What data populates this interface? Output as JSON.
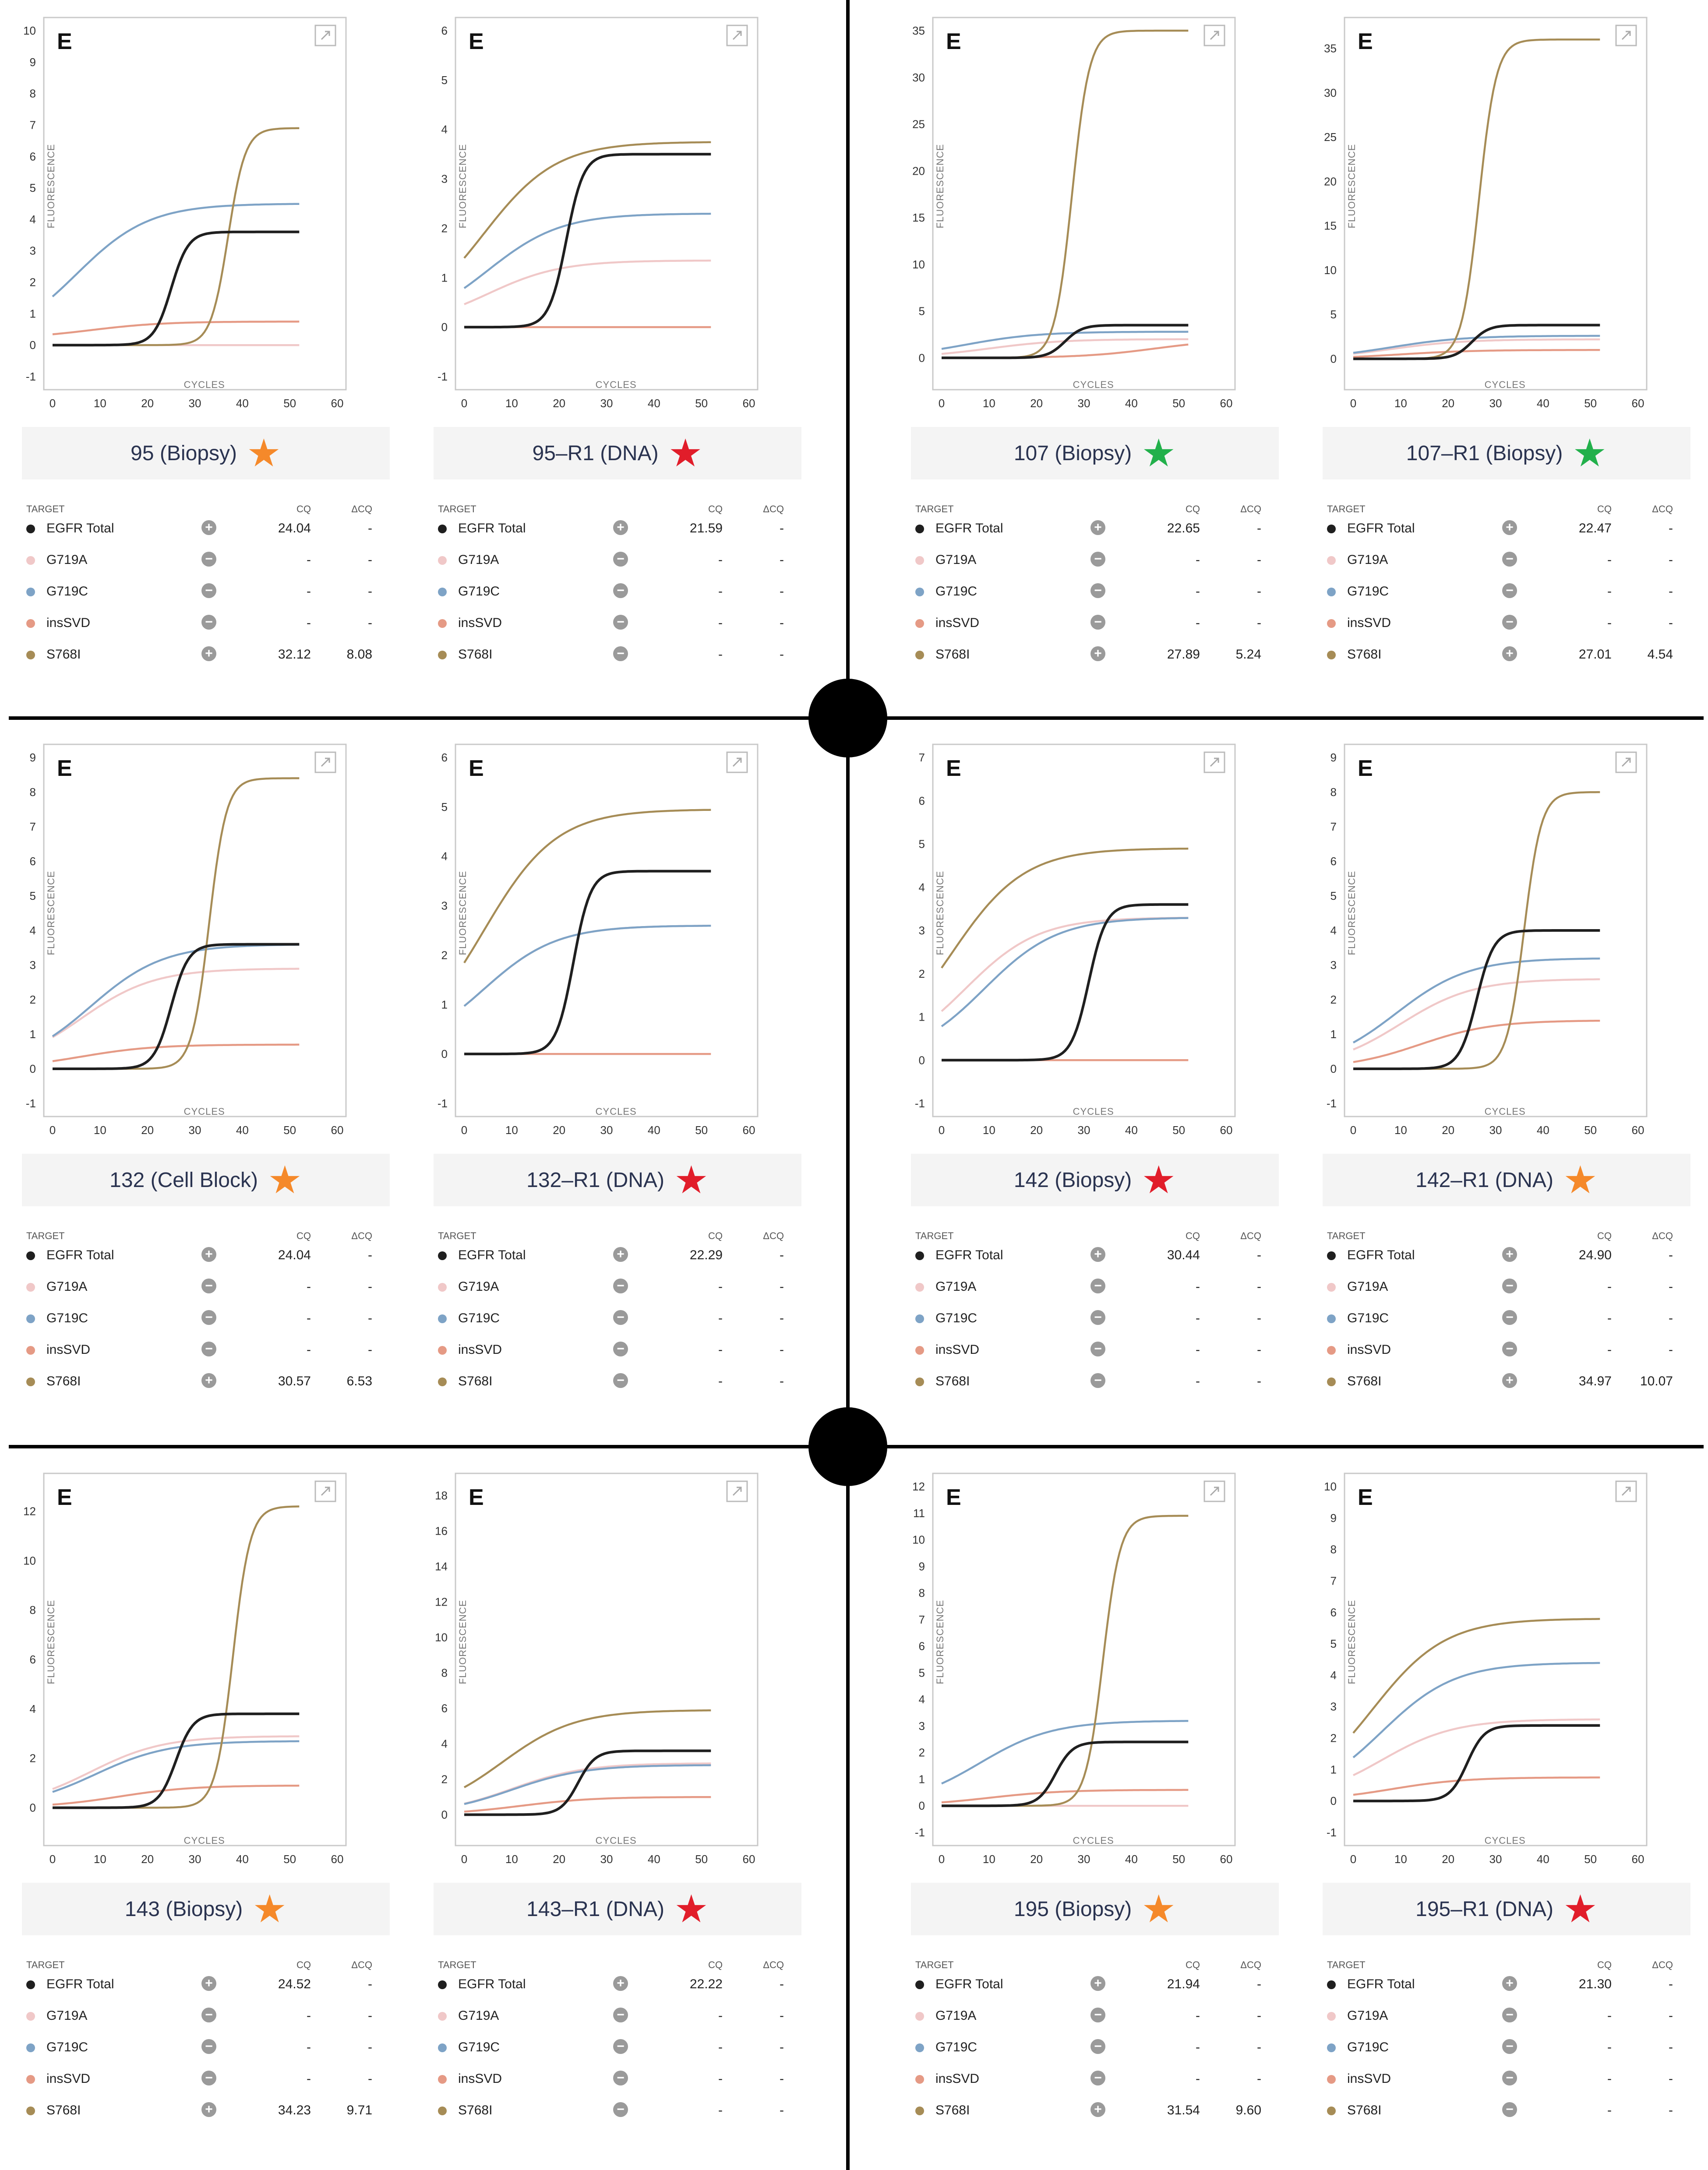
{
  "colors": {
    "egfr_total": "#1f1f1f",
    "g719a": "#f0c8c8",
    "g719c": "#7ea3c6",
    "inssvd": "#e59a85",
    "s768i": "#a68c56",
    "star_orange": "#f5892a",
    "star_red": "#e11d2a",
    "star_green": "#22b04b"
  },
  "common": {
    "panel_letter": "E",
    "xlabel": "CYCLES",
    "ylabel": "FLUORESCENCE",
    "table_headers": {
      "target": "TARGET",
      "cq": "CQ",
      "dcq": "ΔCQ"
    },
    "x_ticks": [
      "0",
      "10",
      "20",
      "30",
      "40",
      "50",
      "60"
    ]
  },
  "chart_data": [
    {
      "type": "line",
      "sample": "95 (Biopsy)",
      "star": "orange",
      "ylim": [
        -1,
        10
      ],
      "y_ticks": [
        "-1",
        "0",
        "1",
        "2",
        "3",
        "4",
        "5",
        "6",
        "7",
        "8",
        "9",
        "10"
      ],
      "series": [
        {
          "name": "EGFR Total",
          "plateau": 3.6,
          "midpoint": 25,
          "base": 0
        },
        {
          "name": "G719A",
          "plateau": 0,
          "midpoint": 20,
          "base": 0
        },
        {
          "name": "G719C",
          "plateau": 4.5,
          "midpoint": 5,
          "base": 0
        },
        {
          "name": "insSVD",
          "plateau": 0.75,
          "midpoint": 8,
          "base": 0.2
        },
        {
          "name": "S768I",
          "plateau": 6.9,
          "midpoint": 37,
          "base": 0
        }
      ],
      "table": [
        {
          "target": "EGFR Total",
          "call": "+",
          "cq": "24.04",
          "dcq": "-"
        },
        {
          "target": "G719A",
          "call": "−",
          "cq": "-",
          "dcq": "-"
        },
        {
          "target": "G719C",
          "call": "−",
          "cq": "-",
          "dcq": "-"
        },
        {
          "target": "insSVD",
          "call": "−",
          "cq": "-",
          "dcq": "-"
        },
        {
          "target": "S768I",
          "call": "+",
          "cq": "32.12",
          "dcq": "8.08"
        }
      ]
    },
    {
      "type": "line",
      "sample": "95–R1 (DNA)",
      "star": "red",
      "ylim": [
        -1,
        6
      ],
      "y_ticks": [
        "-1",
        "0",
        "1",
        "2",
        "3",
        "4",
        "5",
        "6"
      ],
      "series": [
        {
          "name": "EGFR Total",
          "plateau": 3.5,
          "midpoint": 21.5,
          "base": 0
        },
        {
          "name": "G719A",
          "plateau": 1.35,
          "midpoint": 5,
          "base": 0
        },
        {
          "name": "G719C",
          "plateau": 2.3,
          "midpoint": 5,
          "base": 0
        },
        {
          "name": "insSVD",
          "plateau": 0,
          "midpoint": 20,
          "base": 0
        },
        {
          "name": "S768I",
          "plateau": 3.75,
          "midpoint": 4,
          "base": 0
        }
      ],
      "table": [
        {
          "target": "EGFR Total",
          "call": "+",
          "cq": "21.59",
          "dcq": "-"
        },
        {
          "target": "G719A",
          "call": "−",
          "cq": "-",
          "dcq": "-"
        },
        {
          "target": "G719C",
          "call": "−",
          "cq": "-",
          "dcq": "-"
        },
        {
          "target": "insSVD",
          "call": "−",
          "cq": "-",
          "dcq": "-"
        },
        {
          "target": "S768I",
          "call": "−",
          "cq": "-",
          "dcq": "-"
        }
      ]
    },
    {
      "type": "line",
      "sample": "107 (Biopsy)",
      "star": "green",
      "ylim": [
        -2,
        35
      ],
      "y_ticks": [
        "0",
        "5",
        "10",
        "15",
        "20",
        "25",
        "30",
        "35"
      ],
      "series": [
        {
          "name": "EGFR Total",
          "plateau": 3.5,
          "midpoint": 26,
          "base": 0
        },
        {
          "name": "G719A",
          "plateau": 2.0,
          "midpoint": 10,
          "base": 0
        },
        {
          "name": "G719C",
          "plateau": 2.8,
          "midpoint": 5,
          "base": 0
        },
        {
          "name": "insSVD",
          "plateau": 2.0,
          "midpoint": 45,
          "base": 0
        },
        {
          "name": "S768I",
          "plateau": 35,
          "midpoint": 27.5,
          "base": 0
        }
      ],
      "table": [
        {
          "target": "EGFR Total",
          "call": "+",
          "cq": "22.65",
          "dcq": "-"
        },
        {
          "target": "G719A",
          "call": "−",
          "cq": "-",
          "dcq": "-"
        },
        {
          "target": "G719C",
          "call": "−",
          "cq": "-",
          "dcq": "-"
        },
        {
          "target": "insSVD",
          "call": "−",
          "cq": "-",
          "dcq": "-"
        },
        {
          "target": "S768I",
          "call": "+",
          "cq": "27.89",
          "dcq": "5.24"
        }
      ]
    },
    {
      "type": "line",
      "sample": "107–R1 (Biopsy)",
      "star": "green",
      "ylim": [
        -2,
        37
      ],
      "y_ticks": [
        "0",
        "5",
        "10",
        "15",
        "20",
        "25",
        "30",
        "35"
      ],
      "series": [
        {
          "name": "EGFR Total",
          "plateau": 3.8,
          "midpoint": 25,
          "base": 0
        },
        {
          "name": "G719A",
          "plateau": 2.2,
          "midpoint": 8,
          "base": 0
        },
        {
          "name": "G719C",
          "plateau": 2.6,
          "midpoint": 8,
          "base": 0
        },
        {
          "name": "insSVD",
          "plateau": 1.0,
          "midpoint": 10,
          "base": 0
        },
        {
          "name": "S768I",
          "plateau": 36,
          "midpoint": 26.5,
          "base": 0
        }
      ],
      "table": [
        {
          "target": "EGFR Total",
          "call": "+",
          "cq": "22.47",
          "dcq": "-"
        },
        {
          "target": "G719A",
          "call": "−",
          "cq": "-",
          "dcq": "-"
        },
        {
          "target": "G719C",
          "call": "−",
          "cq": "-",
          "dcq": "-"
        },
        {
          "target": "insSVD",
          "call": "−",
          "cq": "-",
          "dcq": "-"
        },
        {
          "target": "S768I",
          "call": "+",
          "cq": "27.01",
          "dcq": "4.54"
        }
      ]
    },
    {
      "type": "line",
      "sample": "132 (Cell Block)",
      "star": "orange",
      "ylim": [
        -1,
        9
      ],
      "y_ticks": [
        "-1",
        "0",
        "1",
        "2",
        "3",
        "4",
        "5",
        "6",
        "7",
        "8",
        "9"
      ],
      "series": [
        {
          "name": "EGFR Total",
          "plateau": 3.6,
          "midpoint": 25,
          "base": 0
        },
        {
          "name": "G719A",
          "plateau": 2.9,
          "midpoint": 6,
          "base": 0
        },
        {
          "name": "G719C",
          "plateau": 3.6,
          "midpoint": 8,
          "base": 0
        },
        {
          "name": "insSVD",
          "plateau": 0.7,
          "midpoint": 6,
          "base": 0
        },
        {
          "name": "S768I",
          "plateau": 8.4,
          "midpoint": 33,
          "base": 0
        }
      ],
      "table": [
        {
          "target": "EGFR Total",
          "call": "+",
          "cq": "24.04",
          "dcq": "-"
        },
        {
          "target": "G719A",
          "call": "−",
          "cq": "-",
          "dcq": "-"
        },
        {
          "target": "G719C",
          "call": "−",
          "cq": "-",
          "dcq": "-"
        },
        {
          "target": "insSVD",
          "call": "−",
          "cq": "-",
          "dcq": "-"
        },
        {
          "target": "S768I",
          "call": "+",
          "cq": "30.57",
          "dcq": "6.53"
        }
      ]
    },
    {
      "type": "line",
      "sample": "132–R1 (DNA)",
      "star": "red",
      "ylim": [
        -1,
        6
      ],
      "y_ticks": [
        "-1",
        "0",
        "1",
        "2",
        "3",
        "4",
        "5",
        "6"
      ],
      "series": [
        {
          "name": "EGFR Total",
          "plateau": 3.7,
          "midpoint": 23,
          "base": 0
        },
        {
          "name": "G719A",
          "plateau": 2.6,
          "midpoint": 4,
          "base": 0
        },
        {
          "name": "G719C",
          "plateau": 2.6,
          "midpoint": 4,
          "base": 0
        },
        {
          "name": "insSVD",
          "plateau": 0,
          "midpoint": 20,
          "base": 0
        },
        {
          "name": "S768I",
          "plateau": 4.95,
          "midpoint": 4,
          "base": 0
        }
      ],
      "table": [
        {
          "target": "EGFR Total",
          "call": "+",
          "cq": "22.29",
          "dcq": "-"
        },
        {
          "target": "G719A",
          "call": "−",
          "cq": "-",
          "dcq": "-"
        },
        {
          "target": "G719C",
          "call": "−",
          "cq": "-",
          "dcq": "-"
        },
        {
          "target": "insSVD",
          "call": "−",
          "cq": "-",
          "dcq": "-"
        },
        {
          "target": "S768I",
          "call": "−",
          "cq": "-",
          "dcq": "-"
        }
      ]
    },
    {
      "type": "line",
      "sample": "142 (Biopsy)",
      "star": "red",
      "ylim": [
        -1,
        7
      ],
      "y_ticks": [
        "-1",
        "0",
        "1",
        "2",
        "3",
        "4",
        "5",
        "6",
        "7"
      ],
      "series": [
        {
          "name": "EGFR Total",
          "plateau": 3.6,
          "midpoint": 31,
          "base": 0
        },
        {
          "name": "G719A",
          "plateau": 3.3,
          "midpoint": 5,
          "base": 0
        },
        {
          "name": "G719C",
          "plateau": 3.3,
          "midpoint": 9,
          "base": 0
        },
        {
          "name": "insSVD",
          "plateau": 0,
          "midpoint": 20,
          "base": 0
        },
        {
          "name": "S768I",
          "plateau": 4.9,
          "midpoint": 2,
          "base": 0
        }
      ],
      "table": [
        {
          "target": "EGFR Total",
          "call": "+",
          "cq": "30.44",
          "dcq": "-"
        },
        {
          "target": "G719A",
          "call": "−",
          "cq": "-",
          "dcq": "-"
        },
        {
          "target": "G719C",
          "call": "−",
          "cq": "-",
          "dcq": "-"
        },
        {
          "target": "insSVD",
          "call": "−",
          "cq": "-",
          "dcq": "-"
        },
        {
          "target": "S768I",
          "call": "−",
          "cq": "-",
          "dcq": "-"
        }
      ]
    },
    {
      "type": "line",
      "sample": "142–R1 (DNA)",
      "star": "orange",
      "ylim": [
        -1,
        9
      ],
      "y_ticks": [
        "-1",
        "0",
        "1",
        "2",
        "3",
        "4",
        "5",
        "6",
        "7",
        "8",
        "9"
      ],
      "series": [
        {
          "name": "EGFR Total",
          "plateau": 4.0,
          "midpoint": 26,
          "base": 0
        },
        {
          "name": "G719A",
          "plateau": 2.6,
          "midpoint": 10,
          "base": 0
        },
        {
          "name": "G719C",
          "plateau": 3.2,
          "midpoint": 9,
          "base": 0
        },
        {
          "name": "insSVD",
          "plateau": 1.4,
          "midpoint": 14,
          "base": 0
        },
        {
          "name": "S768I",
          "plateau": 8.0,
          "midpoint": 36,
          "base": 0
        }
      ],
      "table": [
        {
          "target": "EGFR Total",
          "call": "+",
          "cq": "24.90",
          "dcq": "-"
        },
        {
          "target": "G719A",
          "call": "−",
          "cq": "-",
          "dcq": "-"
        },
        {
          "target": "G719C",
          "call": "−",
          "cq": "-",
          "dcq": "-"
        },
        {
          "target": "insSVD",
          "call": "−",
          "cq": "-",
          "dcq": "-"
        },
        {
          "target": "S768I",
          "call": "+",
          "cq": "34.97",
          "dcq": "10.07"
        }
      ]
    },
    {
      "type": "line",
      "sample": "143 (Biopsy)",
      "star": "orange",
      "ylim": [
        -1,
        13
      ],
      "y_ticks": [
        "0",
        "2",
        "4",
        "6",
        "8",
        "10",
        "12"
      ],
      "series": [
        {
          "name": "EGFR Total",
          "plateau": 3.8,
          "midpoint": 26,
          "base": 0
        },
        {
          "name": "G719A",
          "plateau": 2.9,
          "midpoint": 8,
          "base": 0
        },
        {
          "name": "G719C",
          "plateau": 2.7,
          "midpoint": 9,
          "base": 0
        },
        {
          "name": "insSVD",
          "plateau": 0.9,
          "midpoint": 14,
          "base": 0
        },
        {
          "name": "S768I",
          "plateau": 12.2,
          "midpoint": 38,
          "base": 0
        }
      ],
      "table": [
        {
          "target": "EGFR Total",
          "call": "+",
          "cq": "24.52",
          "dcq": "-"
        },
        {
          "target": "G719A",
          "call": "−",
          "cq": "-",
          "dcq": "-"
        },
        {
          "target": "G719C",
          "call": "−",
          "cq": "-",
          "dcq": "-"
        },
        {
          "target": "insSVD",
          "call": "−",
          "cq": "-",
          "dcq": "-"
        },
        {
          "target": "S768I",
          "call": "+",
          "cq": "34.23",
          "dcq": "9.71"
        }
      ]
    },
    {
      "type": "line",
      "sample": "143–R1 (DNA)",
      "star": "red",
      "ylim": [
        -1,
        18.5
      ],
      "y_ticks": [
        "0",
        "2",
        "4",
        "6",
        "8",
        "10",
        "12",
        "14",
        "16",
        "18"
      ],
      "series": [
        {
          "name": "EGFR Total",
          "plateau": 3.6,
          "midpoint": 24,
          "base": 0
        },
        {
          "name": "G719A",
          "plateau": 2.9,
          "midpoint": 10,
          "base": 0
        },
        {
          "name": "G719C",
          "plateau": 2.8,
          "midpoint": 10,
          "base": 0
        },
        {
          "name": "insSVD",
          "plateau": 1.0,
          "midpoint": 12,
          "base": 0
        },
        {
          "name": "S768I",
          "plateau": 5.9,
          "midpoint": 8,
          "base": 0
        }
      ],
      "table": [
        {
          "target": "EGFR Total",
          "call": "+",
          "cq": "22.22",
          "dcq": "-"
        },
        {
          "target": "G719A",
          "call": "−",
          "cq": "-",
          "dcq": "-"
        },
        {
          "target": "G719C",
          "call": "−",
          "cq": "-",
          "dcq": "-"
        },
        {
          "target": "insSVD",
          "call": "−",
          "cq": "-",
          "dcq": "-"
        },
        {
          "target": "S768I",
          "call": "−",
          "cq": "-",
          "dcq": "-"
        }
      ]
    },
    {
      "type": "line",
      "sample": "195 (Biopsy)",
      "star": "orange",
      "ylim": [
        -1,
        12
      ],
      "y_ticks": [
        "-1",
        "0",
        "1",
        "2",
        "3",
        "4",
        "5",
        "6",
        "7",
        "8",
        "9",
        "10",
        "11",
        "12"
      ],
      "series": [
        {
          "name": "EGFR Total",
          "plateau": 2.4,
          "midpoint": 24,
          "base": 0
        },
        {
          "name": "G719A",
          "plateau": 0,
          "midpoint": 20,
          "base": 0
        },
        {
          "name": "G719C",
          "plateau": 3.2,
          "midpoint": 8,
          "base": 0
        },
        {
          "name": "insSVD",
          "plateau": 0.6,
          "midpoint": 10,
          "base": 0
        },
        {
          "name": "S768I",
          "plateau": 10.9,
          "midpoint": 34,
          "base": 0
        }
      ],
      "table": [
        {
          "target": "EGFR Total",
          "call": "+",
          "cq": "21.94",
          "dcq": "-"
        },
        {
          "target": "G719A",
          "call": "−",
          "cq": "-",
          "dcq": "-"
        },
        {
          "target": "G719C",
          "call": "−",
          "cq": "-",
          "dcq": "-"
        },
        {
          "target": "insSVD",
          "call": "−",
          "cq": "-",
          "dcq": "-"
        },
        {
          "target": "S768I",
          "call": "+",
          "cq": "31.54",
          "dcq": "9.60"
        }
      ]
    },
    {
      "type": "line",
      "sample": "195–R1 (DNA)",
      "star": "red",
      "ylim": [
        -1,
        10
      ],
      "y_ticks": [
        "-1",
        "0",
        "1",
        "2",
        "3",
        "4",
        "5",
        "6",
        "7",
        "8",
        "9",
        "10"
      ],
      "series": [
        {
          "name": "EGFR Total",
          "plateau": 2.4,
          "midpoint": 24,
          "base": 0
        },
        {
          "name": "G719A",
          "plateau": 2.6,
          "midpoint": 6,
          "base": 0
        },
        {
          "name": "G719C",
          "plateau": 4.4,
          "midpoint": 6,
          "base": 0
        },
        {
          "name": "insSVD",
          "plateau": 0.75,
          "midpoint": 8,
          "base": 0
        },
        {
          "name": "S768I",
          "plateau": 5.8,
          "midpoint": 4,
          "base": 0
        }
      ],
      "table": [
        {
          "target": "EGFR Total",
          "call": "+",
          "cq": "21.30",
          "dcq": "-"
        },
        {
          "target": "G719A",
          "call": "−",
          "cq": "-",
          "dcq": "-"
        },
        {
          "target": "G719C",
          "call": "−",
          "cq": "-",
          "dcq": "-"
        },
        {
          "target": "insSVD",
          "call": "−",
          "cq": "-",
          "dcq": "-"
        },
        {
          "target": "S768I",
          "call": "−",
          "cq": "-",
          "dcq": "-"
        }
      ]
    }
  ]
}
